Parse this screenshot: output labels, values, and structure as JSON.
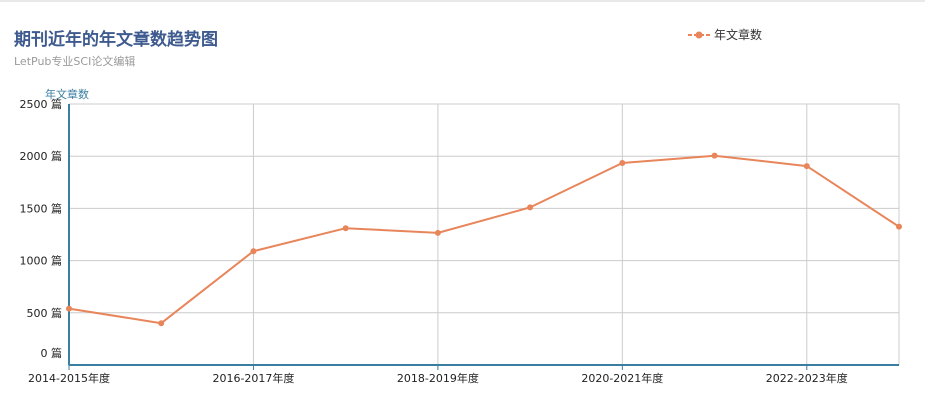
{
  "chart_data": {
    "type": "line",
    "title": "期刊近年的年文章数趋势图",
    "subtitle": "LetPub专业SCI论文编辑",
    "ylabel": "年文章数",
    "xlabel": "",
    "legend": {
      "position": "top-right",
      "entries": [
        "年文章数"
      ]
    },
    "grid": true,
    "ylim": [
      0,
      2500
    ],
    "yticks": [
      {
        "value": 0,
        "label": "0 篇"
      },
      {
        "value": 500,
        "label": "500 篇"
      },
      {
        "value": 1000,
        "label": "1000 篇"
      },
      {
        "value": 1500,
        "label": "1500 篇"
      },
      {
        "value": 2000,
        "label": "2000 篇"
      },
      {
        "value": 2500,
        "label": "2500 篇"
      }
    ],
    "xtick_labels": [
      "2014-2015年度",
      "2016-2017年度",
      "2018-2019年度",
      "2020-2021年度",
      "2022-2023年度"
    ],
    "colors": {
      "series": "#e8855a",
      "axis": "#3a7ea1",
      "grid": "#cccccc",
      "title": "#3e5a8f"
    },
    "series": [
      {
        "name": "年文章数",
        "values": [
          540,
          400,
          1090,
          1310,
          1265,
          1510,
          1935,
          2005,
          1905,
          1325
        ]
      }
    ]
  }
}
